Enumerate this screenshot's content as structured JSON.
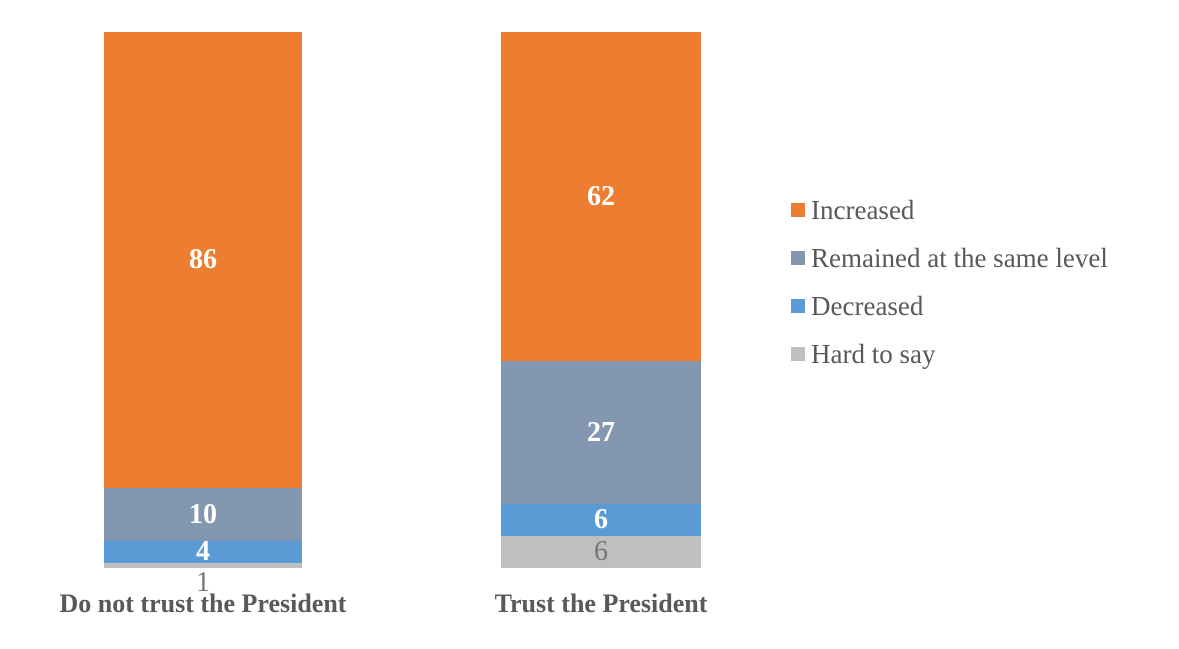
{
  "chart_data": {
    "type": "bar",
    "subtype": "stacked-column",
    "title": "",
    "categories": [
      "Do not trust the President",
      "Trust the President"
    ],
    "series": [
      {
        "name": "Increased",
        "color": "#ED7D31",
        "label_color": "#FFFFFF",
        "label_bold": true,
        "values": [
          86,
          62
        ]
      },
      {
        "name": "Remained at the same level",
        "color": "#8497B0",
        "label_color": "#FFFFFF",
        "label_bold": true,
        "values": [
          10,
          27
        ]
      },
      {
        "name": "Decreased",
        "color": "#5B9BD5",
        "label_color": "#FFFFFF",
        "label_bold": true,
        "values": [
          4,
          6
        ]
      },
      {
        "name": "Hard to say",
        "color": "#BFBFBF",
        "label_color": "#767676",
        "label_bold": false,
        "values": [
          1,
          6
        ]
      }
    ],
    "stack_total": 101,
    "xlabel": "",
    "ylabel": "",
    "axis_lines": "none",
    "grid": false,
    "legend_position": "right",
    "category_label_color": "#595959",
    "background_color": "#FFFFFF"
  }
}
